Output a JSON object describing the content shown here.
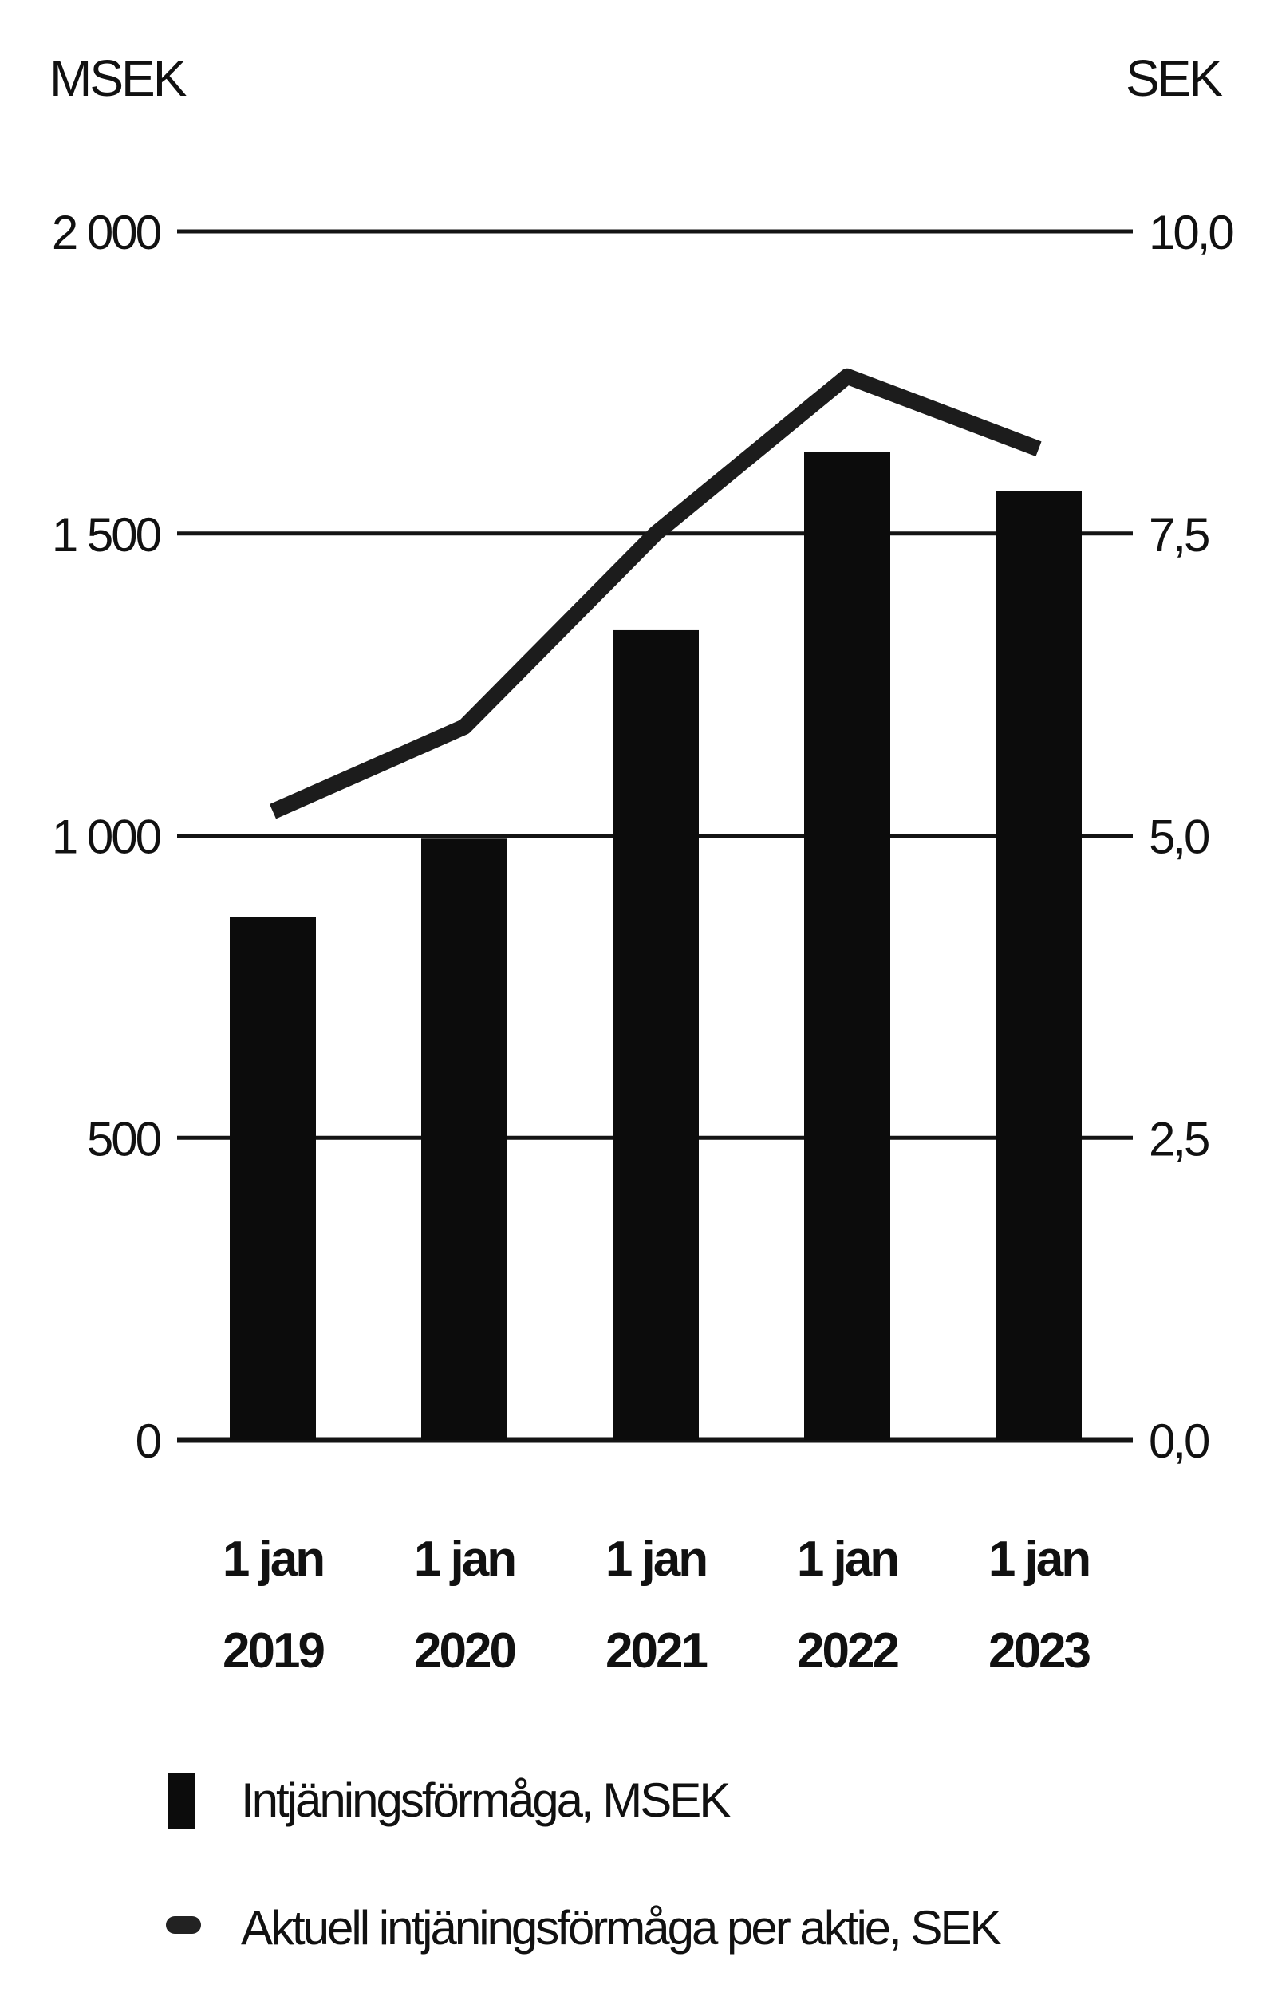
{
  "chart_data": {
    "type": "bar",
    "left_axis_title": "MSEK",
    "right_axis_title": "SEK",
    "left_ticks": [
      "0",
      "500",
      "1 000",
      "1 500",
      "2 000"
    ],
    "right_ticks": [
      "0,0",
      "2,5",
      "5,0",
      "7,5",
      "10,0"
    ],
    "ylim_left": [
      0,
      2000
    ],
    "ylim_right": [
      0,
      10
    ],
    "categories": [
      {
        "line1": "1 jan",
        "line2": "2019"
      },
      {
        "line1": "1 jan",
        "line2": "2020"
      },
      {
        "line1": "1 jan",
        "line2": "2021"
      },
      {
        "line1": "1 jan",
        "line2": "2022"
      },
      {
        "line1": "1 jan",
        "line2": "2023"
      }
    ],
    "series": [
      {
        "name": "Intjäningsförmåga, MSEK",
        "type": "bar",
        "axis": "left",
        "values": [
          865,
          995,
          1340,
          1635,
          1570
        ]
      },
      {
        "name": "Aktuell intjäningsförmåga per aktie, SEK",
        "type": "line",
        "axis": "right",
        "values": [
          5.2,
          5.9,
          7.5,
          8.8,
          8.2
        ]
      }
    ],
    "grid": true,
    "legend_position": "bottom"
  },
  "colors": {
    "bar": "#0c0c0c",
    "line": "#1c1c1c",
    "grid": "#141414",
    "text": "#111111"
  }
}
